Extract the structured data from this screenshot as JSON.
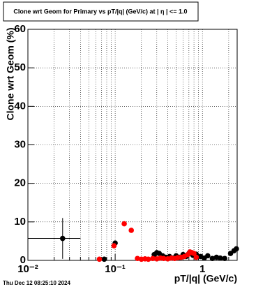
{
  "chart_data": {
    "type": "scatter",
    "title": "Clone wrt Geom for Primary vs pT/|q| (GeV/c) at |  η  | <= 1.0",
    "x_label": "pT/|q| (GeV/c)",
    "y_label": "Clone wrt Geom (%)",
    "timestamp": "Thu Dec 12 08:25:10 2024",
    "log_x": true,
    "grid": true,
    "xlim": [
      0.01,
      2.5
    ],
    "ylim": [
      0,
      60
    ],
    "xticks": [
      {
        "value": 0.01,
        "label": "10⁻²"
      },
      {
        "value": 0.1,
        "label": "10⁻¹"
      },
      1
    ],
    "xminorticks": [
      0.02,
      0.03,
      0.04,
      0.05,
      0.06,
      0.07,
      0.08,
      0.09,
      0.2,
      0.3,
      0.4,
      0.5,
      0.6,
      0.7,
      0.8,
      0.9,
      2
    ],
    "yticks": [
      0,
      10,
      20,
      30,
      40,
      50,
      60
    ],
    "series": [
      {
        "color": "#000000",
        "x": [
          0.025,
          0.075,
          0.1,
          0.28,
          0.3,
          0.32,
          0.35,
          0.38,
          0.42,
          0.46,
          0.5,
          0.55,
          0.6,
          0.65,
          0.7,
          0.78,
          0.85,
          0.95,
          1.05,
          1.15,
          1.3,
          1.45,
          1.6,
          1.8,
          2.1,
          2.3,
          2.45
        ],
        "values": [
          5.7,
          0.3,
          4.5,
          1.5,
          2.0,
          1.8,
          1.2,
          0.8,
          1.0,
          0.6,
          1.2,
          0.8,
          1.5,
          1.0,
          1.8,
          1.3,
          1.6,
          1.0,
          0.6,
          1.2,
          0.5,
          0.8,
          0.6,
          0.5,
          1.8,
          2.5,
          3.0
        ],
        "yerr": [
          5.3,
          null,
          null,
          null,
          null,
          null,
          null,
          null,
          null,
          null,
          null,
          null,
          null,
          null,
          null,
          null,
          null,
          null,
          null,
          null,
          null,
          null,
          null,
          null,
          null,
          null,
          null
        ],
        "xlow": [
          0.01,
          null,
          null,
          null,
          null,
          null,
          null,
          null,
          null,
          null,
          null,
          null,
          null,
          null,
          null,
          null,
          null,
          null,
          null,
          null,
          null,
          null,
          null,
          null,
          null,
          null,
          null
        ],
        "xhigh": [
          0.04,
          null,
          null,
          null,
          null,
          null,
          null,
          null,
          null,
          null,
          null,
          null,
          null,
          null,
          null,
          null,
          null,
          null,
          null,
          null,
          null,
          null,
          null,
          null,
          null,
          null,
          null
        ]
      },
      {
        "color": "#ff0000",
        "x": [
          0.066,
          0.097,
          0.127,
          0.153,
          0.18,
          0.2,
          0.22,
          0.24,
          0.27,
          0.3,
          0.33,
          0.36,
          0.4,
          0.44,
          0.48,
          0.52,
          0.57,
          0.62,
          0.68,
          0.72,
          0.76,
          0.8,
          0.85
        ],
        "values": [
          0.3,
          3.8,
          9.5,
          7.8,
          0.5,
          0.3,
          0.4,
          0.3,
          0.5,
          0.4,
          0.6,
          0.5,
          0.4,
          0.6,
          0.5,
          0.7,
          0.8,
          1.0,
          1.5,
          2.2,
          2.0,
          1.8,
          0.8
        ]
      }
    ]
  }
}
